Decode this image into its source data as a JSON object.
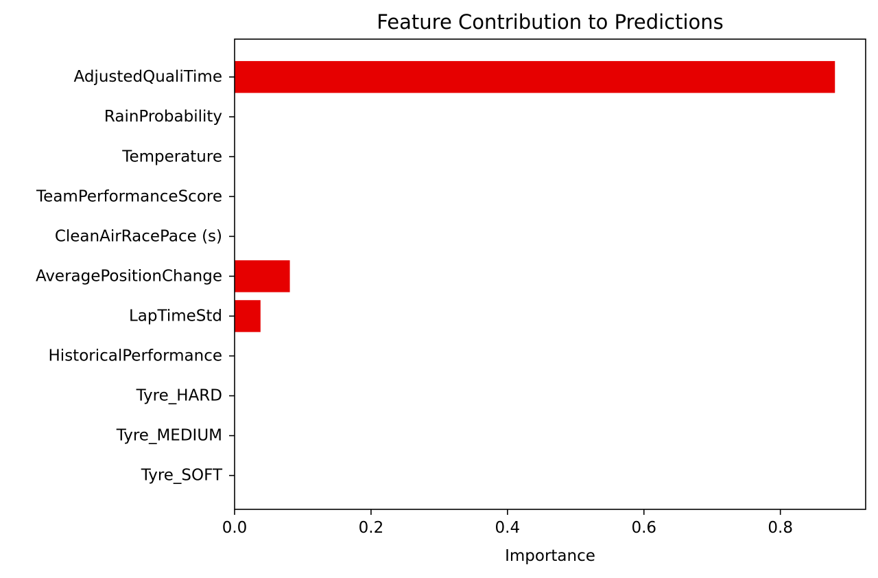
{
  "chart_data": {
    "type": "bar",
    "orientation": "horizontal",
    "title": "Feature Contribution to Predictions",
    "xlabel": "Importance",
    "ylabel": "",
    "categories": [
      "AdjustedQualiTime",
      "RainProbability",
      "Temperature",
      "TeamPerformanceScore",
      "CleanAirRacePace (s)",
      "AveragePositionChange",
      "LapTimeStd",
      "HistoricalPerformance",
      "Tyre_HARD",
      "Tyre_MEDIUM",
      "Tyre_SOFT"
    ],
    "values": [
      0.88,
      0.0,
      0.0,
      0.0,
      0.0,
      0.081,
      0.038,
      0.0,
      0.0,
      0.0,
      0.0
    ],
    "xlim": [
      0,
      0.925
    ],
    "xticks": [
      0.0,
      0.2,
      0.4,
      0.6,
      0.8
    ],
    "xtick_labels": [
      "0.0",
      "0.2",
      "0.4",
      "0.6",
      "0.8"
    ],
    "grid": false,
    "bar_color": "#e60000"
  }
}
